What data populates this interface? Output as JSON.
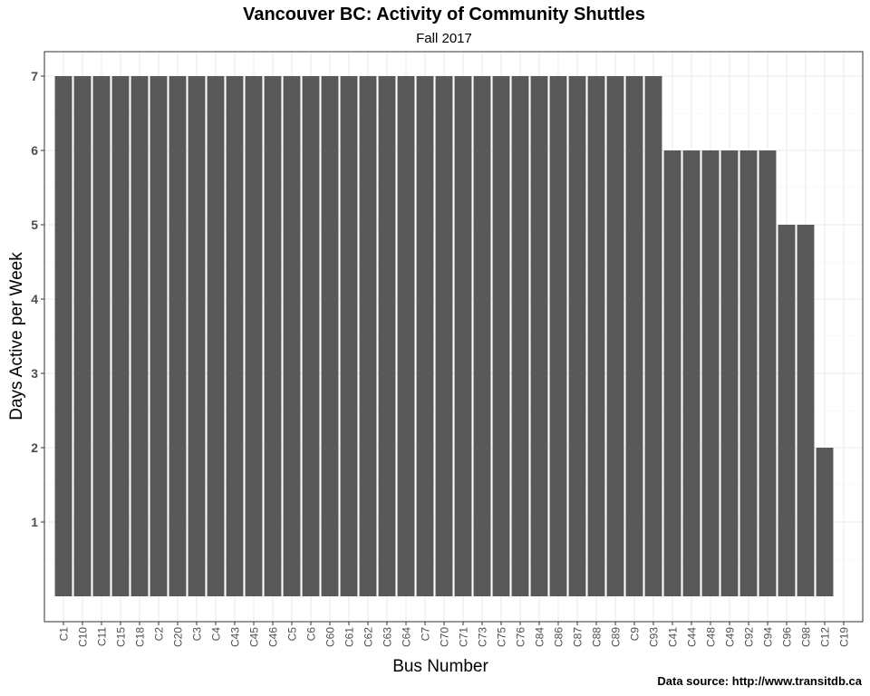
{
  "chart_data": {
    "type": "bar",
    "title": "Vancouver BC: Activity of Community Shuttles",
    "subtitle": "Fall 2017",
    "xlabel": "Bus Number",
    "ylabel": "Days Active per Week",
    "categories": [
      "C1",
      "C10",
      "C11",
      "C15",
      "C18",
      "C2",
      "C20",
      "C3",
      "C4",
      "C43",
      "C45",
      "C46",
      "C5",
      "C6",
      "C60",
      "C61",
      "C62",
      "C63",
      "C64",
      "C7",
      "C70",
      "C71",
      "C73",
      "C75",
      "C76",
      "C84",
      "C86",
      "C87",
      "C88",
      "C89",
      "C9",
      "C93",
      "C41",
      "C44",
      "C48",
      "C49",
      "C92",
      "C94",
      "C96",
      "C98",
      "C12",
      "C19"
    ],
    "values": [
      7,
      7,
      7,
      7,
      7,
      7,
      7,
      7,
      7,
      7,
      7,
      7,
      7,
      7,
      7,
      7,
      7,
      7,
      7,
      7,
      7,
      7,
      7,
      7,
      7,
      7,
      7,
      7,
      7,
      7,
      7,
      7,
      6,
      6,
      6,
      6,
      6,
      6,
      5,
      5,
      2,
      0
    ],
    "yticks": [
      1,
      2,
      3,
      4,
      5,
      6,
      7
    ],
    "ylim": [
      0,
      7.35
    ],
    "bar_color": "#595959",
    "grid": true
  },
  "footer": {
    "data_source": "Data source: http://www.transitdb.ca"
  }
}
